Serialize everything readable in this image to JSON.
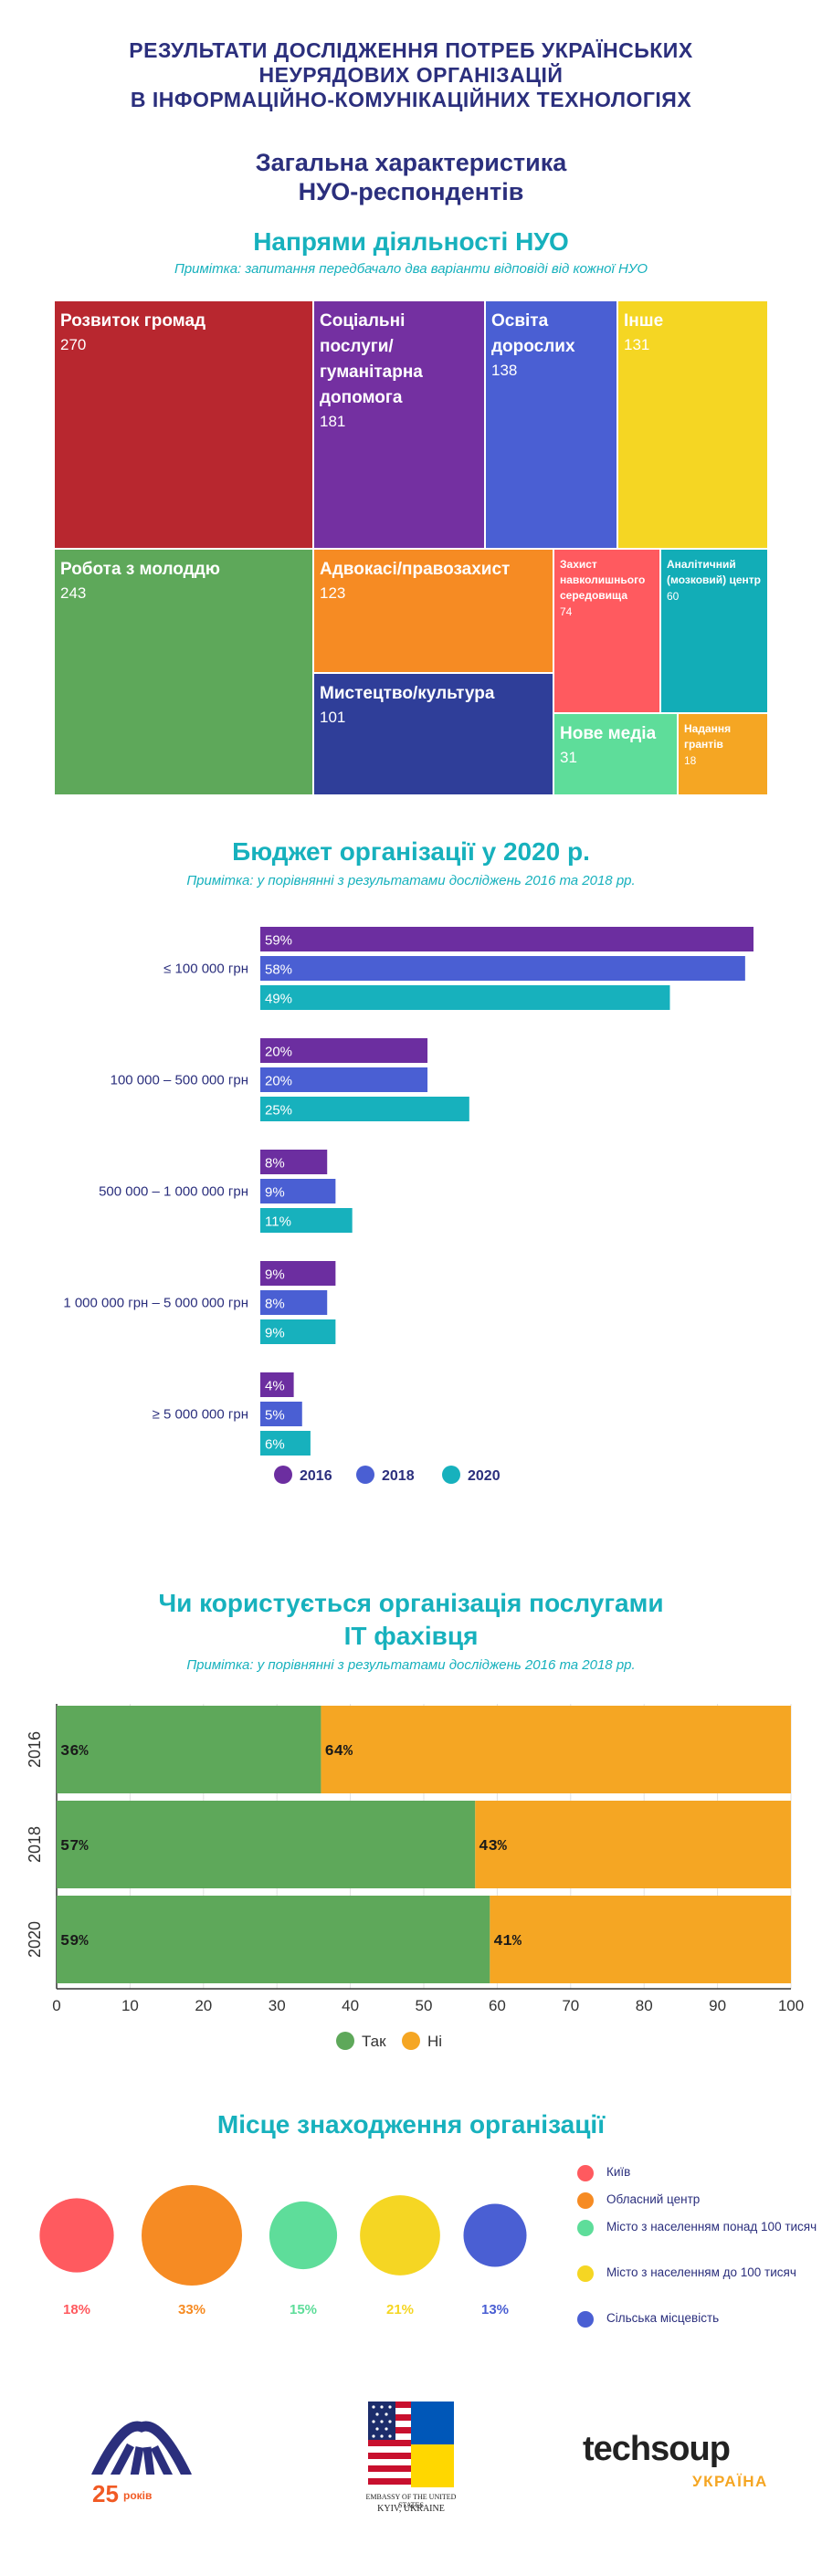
{
  "header": {
    "title_lines": [
      "РЕЗУЛЬТАТИ ДОСЛІДЖЕННЯ ПОТРЕБ УКРАЇНСЬКИХ",
      "НЕУРЯДОВИХ ОРГАНІЗАЦІЙ",
      "В ІНФОРМАЦІЙНО-КОМУНІКАЦІЙНИХ ТЕХНОЛОГІЯХ"
    ],
    "subtitle_lines": [
      "Загальна характеристика",
      "НУО-респондентів"
    ]
  },
  "colors": {
    "title_navy": "#2b2f7d",
    "teal": "#17b1bd",
    "purple": "#6c2ea0",
    "blue": "#4a5fd3",
    "green": "#5ea85a",
    "orange": "#f5a623",
    "red": "#ff5a5f"
  },
  "activity": {
    "title": "Напрями діяльності НУО",
    "note": "Примітка: запитання передбачало два варіанти відповіді від кожної НУО"
  },
  "budget": {
    "title": "Бюджет організації у 2020 р.",
    "note": "Примітка: у порівнянні з результатами досліджень 2016 та 2018 рр."
  },
  "it": {
    "title_lines": [
      "Чи користується організація послугами",
      "IT фахівця"
    ],
    "note": "Примітка: у порівнянні з результатами досліджень 2016 та 2018 рр."
  },
  "location": {
    "title": "Місце знаходження організації"
  },
  "footer": {
    "isar_years": "25",
    "isar_years_word": "років",
    "embassy_line1": "EMBASSY OF THE UNITED STATES",
    "embassy_line2": "KYIV, UKRAINE",
    "techsoup_a": "tech",
    "techsoup_b": "soup",
    "techsoup_country": "УКРАЇНА"
  },
  "chart_data": [
    {
      "type": "treemap",
      "items": [
        {
          "label": "Розвиток громад",
          "value": 270,
          "color": "#b8272f"
        },
        {
          "label": "Соціальні послуги/ гуманітарна допомога",
          "value": 181,
          "color": "#7430a1"
        },
        {
          "label": "Освіта дорослих",
          "value": 138,
          "color": "#4a5fd3"
        },
        {
          "label": "Інше",
          "value": 131,
          "color": "#f5d623"
        },
        {
          "label": "Робота з молоддю",
          "value": 243,
          "color": "#5ea85a"
        },
        {
          "label": "Адвокасі/правозахист",
          "value": 123,
          "color": "#f68b23"
        },
        {
          "label": "Мистецтво/культура",
          "value": 101,
          "color": "#2f3e99"
        },
        {
          "label": "Захист навколишнього середовища",
          "value": 74,
          "color": "#ff5a5f"
        },
        {
          "label": "Аналітичний (мозковий) центр",
          "value": 60,
          "color": "#12adb7"
        },
        {
          "label": "Нове медіа",
          "value": 31,
          "color": "#5edd9a"
        },
        {
          "label": "Надання грантів",
          "value": 18,
          "color": "#f5a623"
        }
      ]
    },
    {
      "type": "bar",
      "orientation": "horizontal",
      "categories": [
        "≤ 100 000 грн",
        "100 000 – 500 000 грн",
        "500 000 – 1 000 000 грн",
        "1 000 000 грн – 5 000 000 грн",
        "≥ 5 000 000 грн"
      ],
      "series": [
        {
          "name": "2016",
          "color": "#6c2ea0",
          "values": [
            59,
            20,
            8,
            9,
            4
          ]
        },
        {
          "name": "2018",
          "color": "#4a5fd3",
          "values": [
            58,
            20,
            9,
            8,
            5
          ]
        },
        {
          "name": "2020",
          "color": "#17b1bd",
          "values": [
            49,
            25,
            11,
            9,
            6
          ]
        }
      ],
      "value_suffix": "%"
    },
    {
      "type": "bar",
      "orientation": "horizontal",
      "stacked": true,
      "categories": [
        "2016",
        "2018",
        "2020"
      ],
      "series": [
        {
          "name": "Так",
          "color": "#5ea85a",
          "values": [
            36,
            57,
            59
          ]
        },
        {
          "name": "Ні",
          "color": "#f5a623",
          "values": [
            64,
            43,
            41
          ]
        }
      ],
      "xticks": [
        "0",
        "10",
        "20",
        "30",
        "40",
        "50",
        "60",
        "70",
        "80",
        "90",
        "100"
      ],
      "xlim": [
        0,
        100
      ],
      "grid": true,
      "legend": "bottom"
    },
    {
      "type": "bubble",
      "items": [
        {
          "label": "Київ",
          "value": 18,
          "pct_label": "18%",
          "color": "#ff5a5f"
        },
        {
          "label": "Обласний центр",
          "value": 33,
          "pct_label": "33%",
          "color": "#f68b23"
        },
        {
          "label": "Місто з населенням понад 100 тисяч",
          "value": 15,
          "pct_label": "15%",
          "color": "#5edd9a"
        },
        {
          "label": "Місто з населенням до 100 тисяч",
          "value": 21,
          "pct_label": "21%",
          "color": "#f5d623"
        },
        {
          "label": "Сільська місцевість",
          "value": 13,
          "pct_label": "13%",
          "color": "#4a5fd3"
        }
      ]
    }
  ]
}
